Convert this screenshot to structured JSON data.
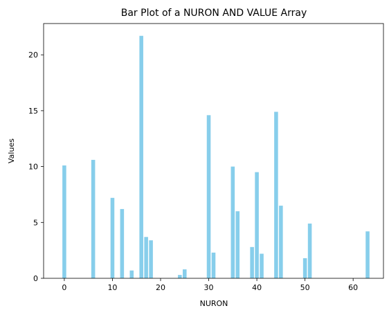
{
  "chart_data": {
    "type": "bar",
    "title": "Bar Plot of a NURON AND VALUE Array",
    "xlabel": "NURON",
    "ylabel": "Values",
    "bar_color": "#87ceeb",
    "xlim": [
      -4.3,
      66.3
    ],
    "ylim": [
      0,
      22.8
    ],
    "x_ticks": [
      0,
      10,
      20,
      30,
      40,
      50,
      60
    ],
    "y_ticks": [
      0,
      5,
      10,
      15,
      20
    ],
    "grid": false,
    "legend": "none",
    "x": [
      0,
      6,
      10,
      12,
      14,
      16,
      17,
      18,
      24,
      25,
      30,
      31,
      35,
      36,
      39,
      40,
      41,
      44,
      45,
      50,
      51,
      63
    ],
    "values": [
      10.1,
      10.6,
      7.2,
      6.2,
      0.7,
      21.7,
      3.7,
      3.4,
      0.3,
      0.8,
      14.6,
      2.3,
      10.0,
      6.0,
      2.8,
      9.5,
      2.2,
      14.9,
      6.5,
      1.8,
      4.9,
      4.2
    ]
  }
}
